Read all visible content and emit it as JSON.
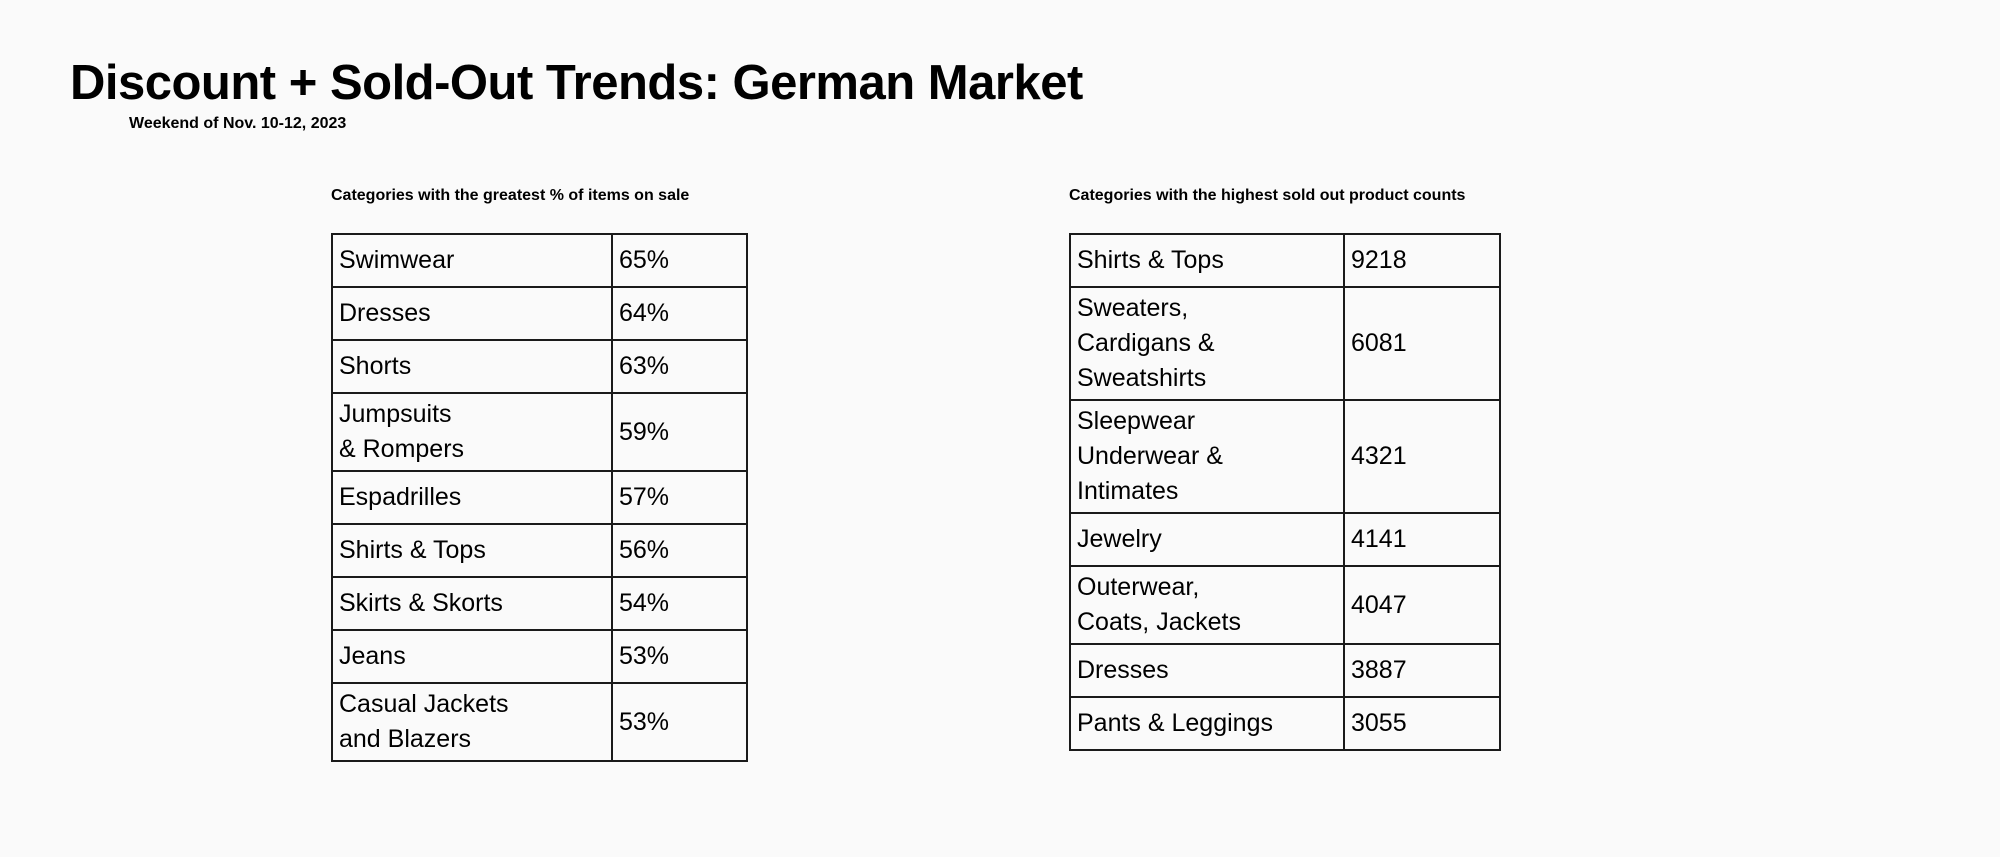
{
  "title": "Discount + Sold-Out Trends: German Market",
  "subtitle": "Weekend of Nov. 10-12, 2023",
  "on_sale": {
    "heading": "Categories with the greatest % of items on sale",
    "rows": [
      {
        "category": "Swimwear",
        "value": "65%"
      },
      {
        "category": "Dresses",
        "value": "64%"
      },
      {
        "category": "Shorts",
        "value": "63%"
      },
      {
        "category": "Jumpsuits\n  & Rompers",
        "value": "59%"
      },
      {
        "category": "Espadrilles",
        "value": "57%"
      },
      {
        "category": "Shirts & Tops",
        "value": "56%"
      },
      {
        "category": "Skirts & Skorts",
        "value": "54%"
      },
      {
        "category": "Jeans",
        "value": "53%"
      },
      {
        "category": "Casual Jackets\n  and Blazers",
        "value": "53%"
      }
    ]
  },
  "sold_out": {
    "heading": "Categories with the highest sold out product counts",
    "rows": [
      {
        "category": "Shirts & Tops",
        "value": "9218"
      },
      {
        "category": "Sweaters,\n  Cardigans &\nSweatshirts",
        "value": "6081"
      },
      {
        "category": "Sleepwear\n  Underwear &\nIntimates",
        "value": "4321"
      },
      {
        "category": "Jewelry",
        "value": "4141"
      },
      {
        "category": "Outerwear,\n  Coats, Jackets",
        "value": "4047"
      },
      {
        "category": "Dresses",
        "value": "3887"
      },
      {
        "category": "Pants & Leggings",
        "value": "3055"
      }
    ]
  }
}
